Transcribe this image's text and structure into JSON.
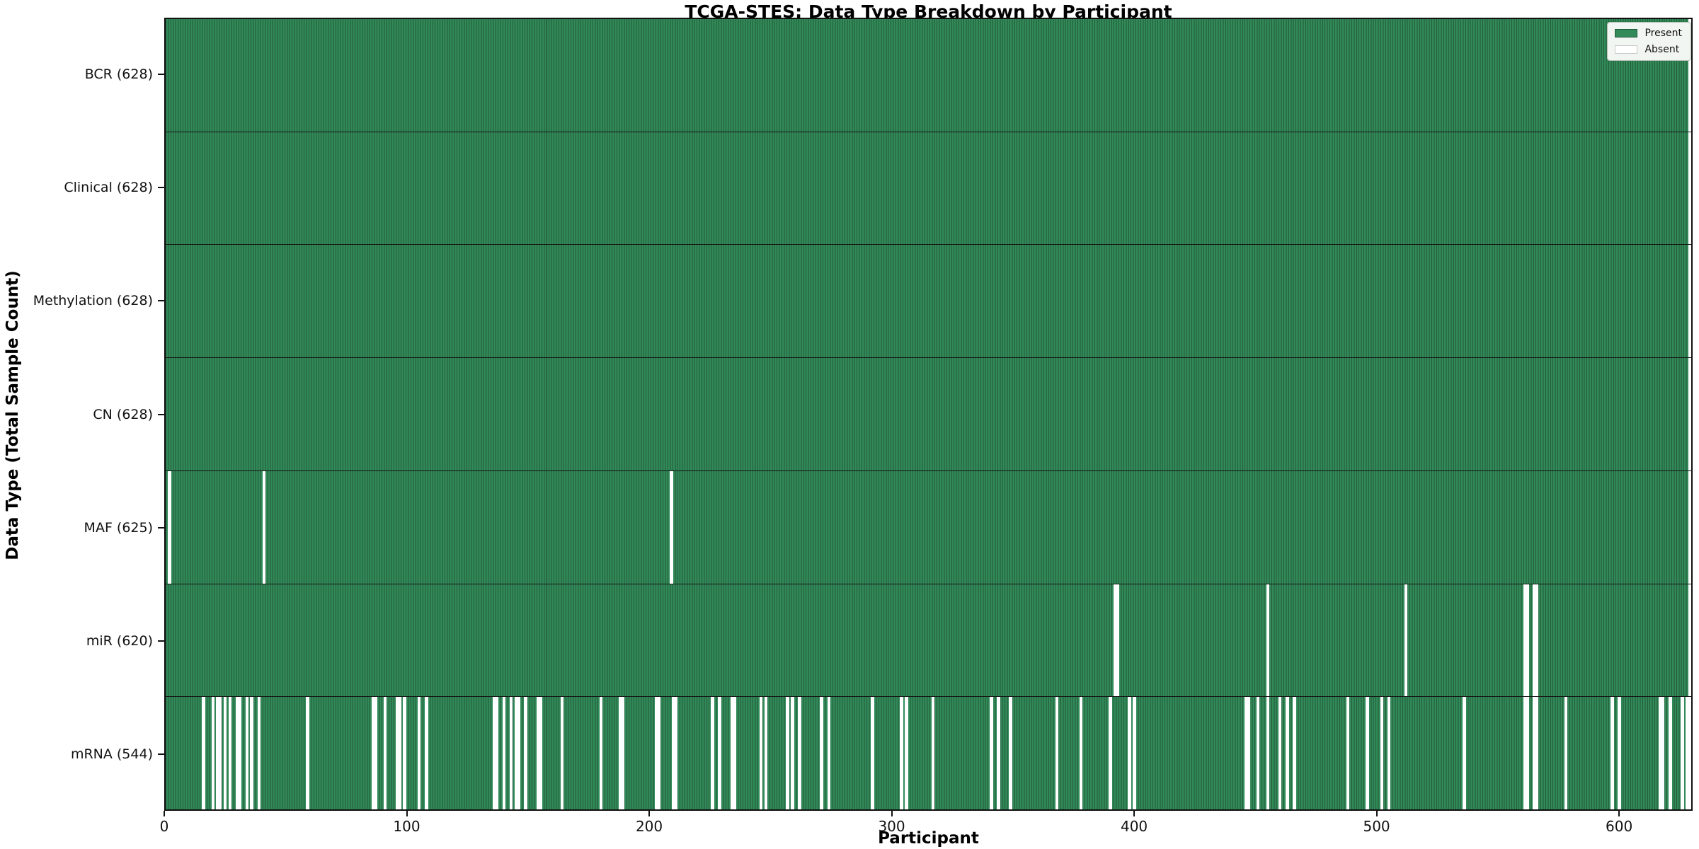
{
  "chart_data": {
    "type": "heatmap",
    "title": "TCGA-STES: Data Type Breakdown by Participant",
    "xlabel": "Participant",
    "ylabel": "Data Type (Total Sample Count)",
    "n_participants": 628,
    "x_ticks": [
      0,
      100,
      200,
      300,
      400,
      500,
      600
    ],
    "colors": {
      "present_fill": "#318a58",
      "present_edge": "#24583b",
      "absent_fill": "#ffffff",
      "legend_absent_border": "#c8c8c8",
      "axis": "#111111"
    },
    "legend_items": [
      {
        "label": "Present",
        "color": "#318a58"
      },
      {
        "label": "Absent",
        "color": "#ffffff"
      }
    ],
    "rows": [
      {
        "label": "BCR (628)",
        "data_type": "BCR",
        "total_samples": 628,
        "absent_participants": []
      },
      {
        "label": "Clinical (628)",
        "data_type": "Clinical",
        "total_samples": 628,
        "absent_participants": []
      },
      {
        "label": "Methylation (628)",
        "data_type": "Methylation",
        "total_samples": 628,
        "absent_participants": []
      },
      {
        "label": "CN (628)",
        "data_type": "CN",
        "total_samples": 628,
        "absent_participants": []
      },
      {
        "label": "MAF (625)",
        "data_type": "MAF",
        "total_samples": 625,
        "absent_participants": [
          1,
          40,
          208
        ]
      },
      {
        "label": "miR (620)",
        "data_type": "miR",
        "total_samples": 620,
        "absent_participants": [
          391,
          392,
          454,
          511,
          560,
          561,
          564,
          565
        ]
      },
      {
        "label": "mRNA (544)",
        "data_type": "mRNA",
        "total_samples": 544,
        "absent_participants": [
          15,
          19,
          21,
          22,
          24,
          26,
          29,
          30,
          33,
          35,
          38,
          58,
          85,
          86,
          90,
          95,
          96,
          98,
          104,
          107,
          135,
          136,
          139,
          142,
          144,
          145,
          148,
          153,
          154,
          163,
          179,
          187,
          188,
          202,
          203,
          209,
          210,
          225,
          228,
          233,
          234,
          245,
          247,
          256,
          258,
          261,
          270,
          273,
          291,
          303,
          305,
          316,
          340,
          343,
          348,
          367,
          377,
          389,
          397,
          399,
          445,
          446,
          450,
          454,
          459,
          462,
          465,
          487,
          495,
          501,
          504,
          535,
          560,
          561,
          564,
          565,
          577,
          596,
          599,
          616,
          617,
          620,
          625,
          627
        ]
      }
    ]
  }
}
